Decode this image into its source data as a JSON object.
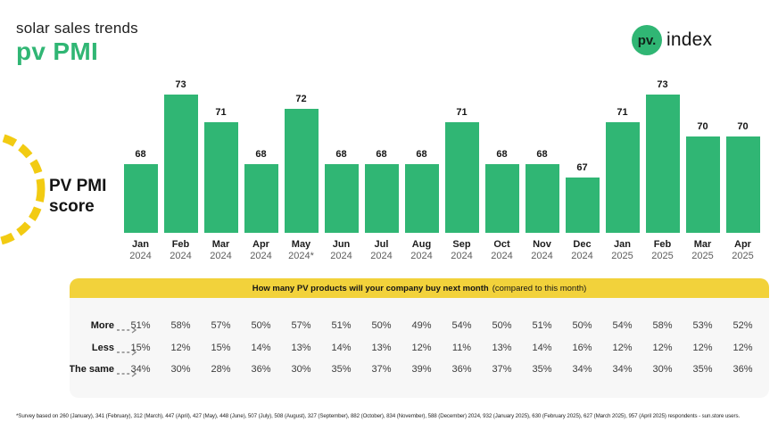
{
  "header": {
    "subtitle": "solar sales trends",
    "title": "pv PMI"
  },
  "logo": {
    "mark": "pv.",
    "name": "index"
  },
  "badge": {
    "line1": "PV PMI",
    "line2": "score"
  },
  "colors": {
    "green": "#30B674",
    "banner_yellow": "#F2D23B",
    "circle_yellow": "#F2CB12",
    "dark": "#1A1A1A",
    "panel_gray": "#F7F7F7"
  },
  "chart_data": [
    {
      "type": "bar",
      "title": "PV PMI score",
      "categories": [
        "Jan 2024",
        "Feb 2024",
        "Mar 2024",
        "Apr 2024",
        "May 2024*",
        "Jun 2024",
        "Jul 2024",
        "Aug 2024",
        "Sep 2024",
        "Oct 2024",
        "Nov 2024",
        "Dec 2024",
        "Jan 2025",
        "Feb 2025",
        "Mar 2025",
        "Apr 2025"
      ],
      "values": [
        68,
        73,
        71,
        68,
        72,
        68,
        68,
        68,
        71,
        68,
        68,
        67,
        71,
        73,
        70,
        70
      ],
      "bar_color": "#30B674",
      "ylim": [
        63,
        75
      ],
      "grid": false,
      "data_labels": true,
      "legend": "none"
    },
    {
      "type": "table",
      "header_bold": "How many PV products will your company buy next month",
      "header_note": "(compared to this month)",
      "columns": [
        "Jan 2024",
        "Feb 2024",
        "Mar 2024",
        "Apr 2024",
        "May 2024*",
        "Jun 2024",
        "Jul 2024",
        "Aug 2024",
        "Sep 2024",
        "Oct 2024",
        "Nov 2024",
        "Dec 2024",
        "Jan 2025",
        "Feb 2025",
        "Mar 2025",
        "Apr 2025"
      ],
      "unit": "%",
      "rows": [
        {
          "label": "More",
          "values": [
            51,
            58,
            57,
            50,
            57,
            51,
            50,
            49,
            54,
            50,
            51,
            50,
            54,
            58,
            53,
            52
          ]
        },
        {
          "label": "Less",
          "values": [
            15,
            12,
            15,
            14,
            13,
            14,
            13,
            12,
            11,
            13,
            14,
            16,
            12,
            12,
            12,
            12
          ]
        },
        {
          "label": "The same",
          "values": [
            34,
            30,
            28,
            36,
            30,
            35,
            37,
            39,
            36,
            37,
            35,
            34,
            34,
            30,
            35,
            36
          ]
        }
      ]
    }
  ],
  "footnote": "*Survey based on 260 (January), 341 (February), 312 (March), 447 (April), 427 (May), 448 (June), 507 (July), 508 (August), 327 (September), 882 (October), 834 (November), 588 (December) 2024, 932 (January 2025), 630 (February 2025), 627 (March 2025), 957 (April 2025) respondents - sun.store users."
}
